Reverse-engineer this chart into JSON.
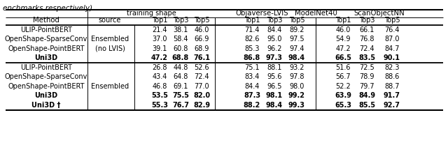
{
  "caption": "enchmarks respectively)",
  "group1_methods": [
    "ULIP-PointBERT",
    "OpenShape-SparseConv",
    "OpenShape-PointBERT",
    "Uni3D"
  ],
  "group1_source": "Ensembled\n(no LVIS)",
  "group1_bold": [
    false,
    false,
    false,
    true
  ],
  "group1_data": [
    [
      21.4,
      38.1,
      46.0,
      71.4,
      84.4,
      89.2,
      46.0,
      66.1,
      76.4
    ],
    [
      37.0,
      58.4,
      66.9,
      82.6,
      95.0,
      97.5,
      54.9,
      76.8,
      87.0
    ],
    [
      39.1,
      60.8,
      68.9,
      85.3,
      96.2,
      97.4,
      47.2,
      72.4,
      84.7
    ],
    [
      47.2,
      68.8,
      76.1,
      86.8,
      97.3,
      98.4,
      66.5,
      83.5,
      90.1
    ]
  ],
  "group2_methods": [
    "ULIP-PointBERT",
    "OpenShape-SparseConv",
    "OpenShape-PointBERT",
    "Uni3D",
    "Uni3D †"
  ],
  "group2_source": "Ensembled",
  "group2_bold": [
    false,
    false,
    false,
    true,
    true
  ],
  "group2_data": [
    [
      26.8,
      44.8,
      52.6,
      75.1,
      88.1,
      93.2,
      51.6,
      72.5,
      82.3
    ],
    [
      43.4,
      64.8,
      72.4,
      83.4,
      95.6,
      97.8,
      56.7,
      78.9,
      88.6
    ],
    [
      46.8,
      69.1,
      77.0,
      84.4,
      96.5,
      98.0,
      52.2,
      79.7,
      88.7
    ],
    [
      53.5,
      75.5,
      82.0,
      87.3,
      98.1,
      99.2,
      63.9,
      84.9,
      91.7
    ],
    [
      55.3,
      76.7,
      82.9,
      88.2,
      98.4,
      99.3,
      65.3,
      85.5,
      92.7
    ]
  ],
  "fs": 7.0,
  "fs_bold": 7.0
}
